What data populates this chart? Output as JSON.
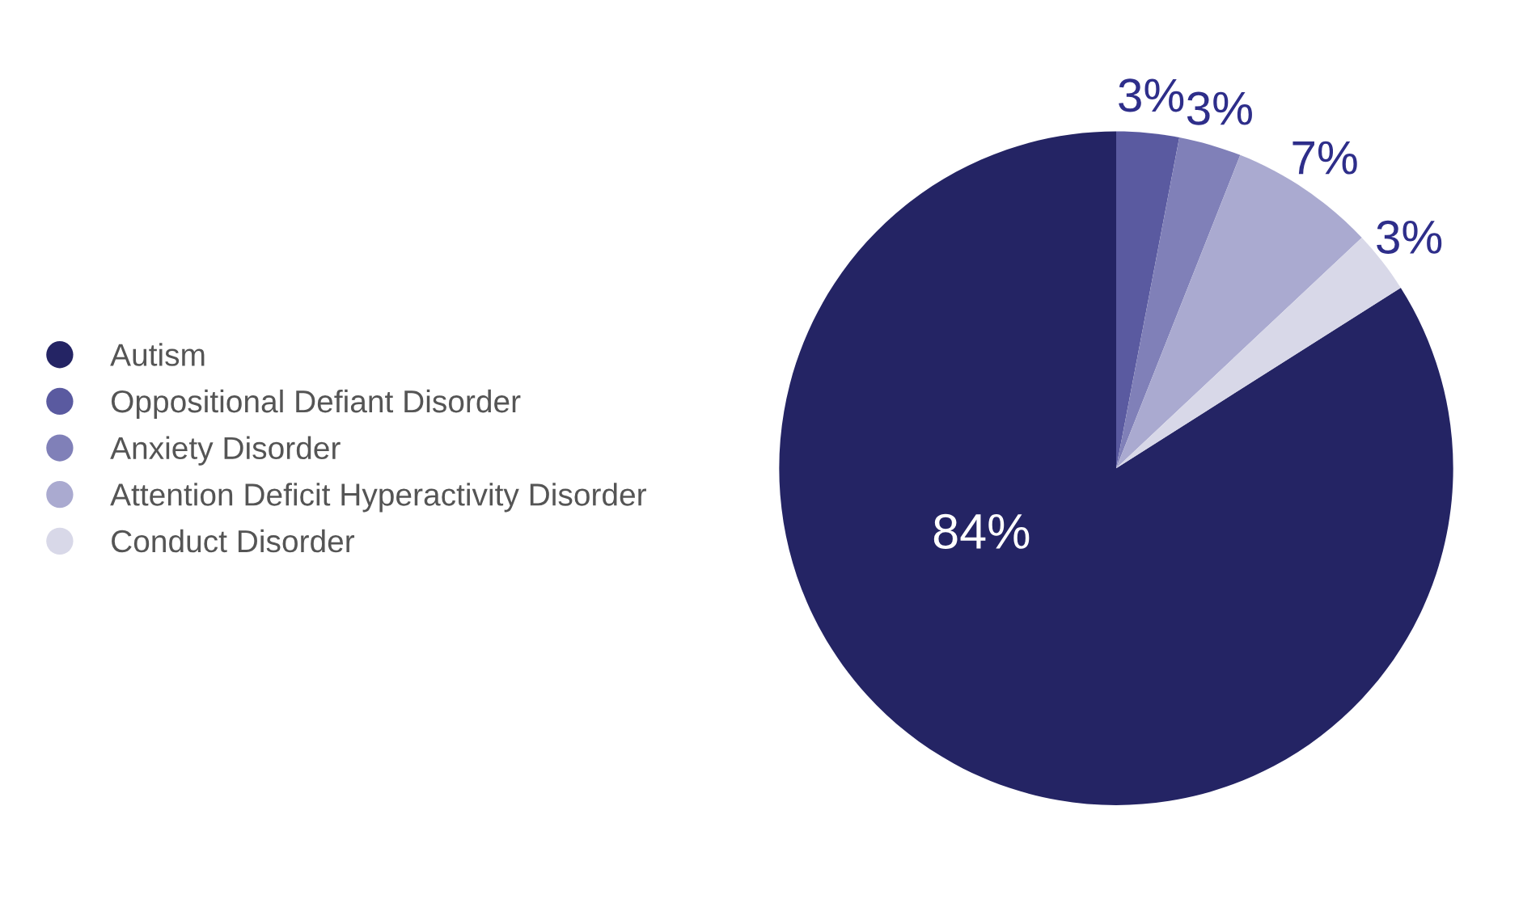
{
  "chart_data": {
    "type": "pie",
    "categories": [
      "Autism",
      "Oppositional Defiant Disorder",
      "Anxiety Disorder",
      "Attention Deficit Hyperactivity Disorder",
      "Conduct Disorder"
    ],
    "values": [
      84,
      3,
      3,
      7,
      3
    ],
    "value_labels": [
      "84%",
      "3%",
      "3%",
      "7%",
      "3%"
    ],
    "colors": [
      "#242464",
      "#5a5aa0",
      "#8080b8",
      "#aaaad0",
      "#d8d8e8"
    ],
    "legend": "left"
  }
}
